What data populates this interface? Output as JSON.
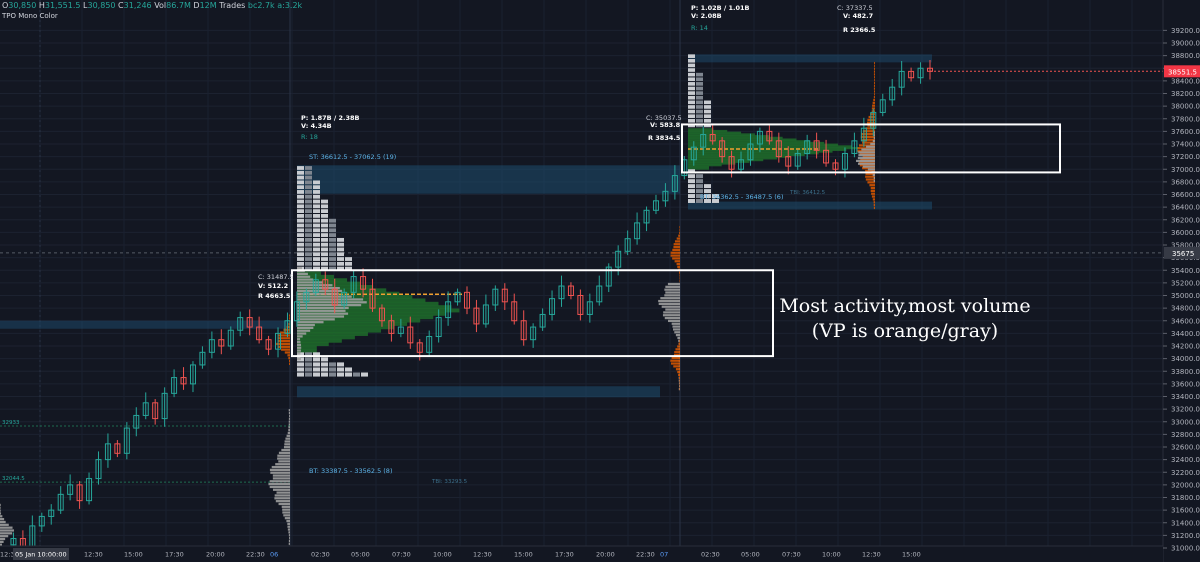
{
  "header": {
    "ohlc_text": "O30,850 H31,551.5 L30,850 C31,246 Vol86.7M D12M Trades bc2.7k a:3.2k",
    "open_label": "O",
    "open": "30,850",
    "high_label": "H",
    "high": "31,551.5",
    "low_label": "L",
    "low": "30,850",
    "close_label": "C",
    "close": "31,246",
    "vol_label": "Vol",
    "vol": "86.7M",
    "d_label": "D",
    "d": "12M",
    "trades_label": "Trades",
    "trades": "bc2.7k a:3.2k",
    "indicator": "TPO Mono Color"
  },
  "annotation": {
    "line1": "Most activity,most volume",
    "line2": "(VP is orange/gray)"
  },
  "price_axis": {
    "last_price": "38551.5",
    "crosshair_price": "35675",
    "last_color": "#f23645"
  },
  "colors": {
    "background": "#131722",
    "up": "#26a69a",
    "down": "#ef5350",
    "vp_orange": "#d35400",
    "vp_gray": "#9e9e9e",
    "value_area": "#1f6b2a",
    "box": "#ffffff",
    "balance_zone": "#1e4c6e"
  },
  "sessions": [
    {
      "stats_p": "",
      "stats_v": "",
      "stats_r": "",
      "close": "C: 31487.5",
      "close_v": "V: 512.2",
      "range": "R 4663.5",
      "st": "",
      "bt": ""
    },
    {
      "stats_p": "P: 1.87B / 2.38B",
      "stats_v": "V: 4.34B",
      "stats_r": "R: 18",
      "close": "C: 35037.5",
      "close_v": "V: 583.8",
      "range": "R 3834.5",
      "st": "ST: 36612.5 - 37062.5 (19)",
      "bt": "BT: 33387.5 - 33562.5 (8)",
      "bt_poc": "TBI: 33293.5"
    },
    {
      "stats_p": "P: 1.02B / 1.01B",
      "stats_v": "V: 2.08B",
      "stats_r": "R: 14",
      "close": "C: 37337.5",
      "close_v": "V: 482.7",
      "range": "R 2366.5",
      "st": "",
      "bt": "BT: 36362.5 - 36487.5 (6)",
      "bt_poc": "TBI: 36412.5"
    }
  ],
  "left_labels": [
    "32933",
    "32044.5"
  ],
  "chart_data": {
    "type": "candlestick",
    "title": "",
    "xlabel": "",
    "ylabel": "",
    "ylim": [
      30850,
      39450
    ],
    "x_ticks": [
      "12:30",
      "05 Jan 10:00:00",
      "12:30",
      "15:00",
      "17:30",
      "20:00",
      "22:30",
      "06",
      "02:30",
      "05:00",
      "07:30",
      "10:00",
      "12:30",
      "15:00",
      "17:30",
      "20:00",
      "22:30",
      "07",
      "02:30",
      "05:00",
      "07:30",
      "10:00",
      "12:30",
      "15:00"
    ],
    "y_ticks": [
      39200,
      39000,
      38800,
      38600,
      38400,
      38200,
      38000,
      37800,
      37600,
      37400,
      37200,
      37000,
      36800,
      36600,
      36400,
      36200,
      36000,
      35800,
      35600,
      35400,
      35200,
      35000,
      34800,
      34600,
      34400,
      34200,
      34000,
      33800,
      33600,
      33400,
      33200,
      33000,
      32800,
      32600,
      32400,
      32200,
      32000,
      31800,
      31600,
      31400,
      31200,
      31000
    ],
    "price_path": [
      31050,
      31150,
      31000,
      31350,
      31500,
      31600,
      31850,
      32000,
      31750,
      32100,
      32400,
      32650,
      32500,
      32900,
      33100,
      33300,
      33050,
      33450,
      33700,
      33600,
      33900,
      34100,
      34300,
      34200,
      34450,
      34650,
      34500,
      34300,
      34150,
      34400,
      34600,
      34900,
      35050,
      35250,
      35100,
      34850,
      35050,
      35300,
      35100,
      34800,
      34600,
      34400,
      34500,
      34250,
      34100,
      34350,
      34650,
      34900,
      35050,
      34800,
      34550,
      34850,
      35100,
      34900,
      34600,
      34300,
      34500,
      34700,
      34950,
      35150,
      35000,
      34700,
      34900,
      35150,
      35450,
      35700,
      35900,
      36150,
      36350,
      36500,
      36650,
      36900,
      37150,
      37350,
      37550,
      37450,
      37200,
      37000,
      37150,
      37400,
      37600,
      37450,
      37200,
      37050,
      37250,
      37450,
      37300,
      37100,
      37000,
      37250,
      37450,
      37650,
      37900,
      38100,
      38300,
      38550,
      38450,
      38600,
      38551.5
    ],
    "session_boxes": [
      {
        "label": "box-session-6",
        "price_high": 35400,
        "price_low": 34040
      },
      {
        "label": "box-session-7",
        "price_high": 37710,
        "price_low": 36950
      }
    ]
  }
}
